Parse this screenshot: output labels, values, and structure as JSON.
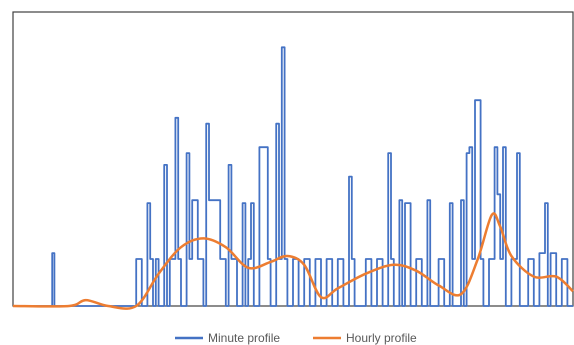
{
  "chart_data": {
    "type": "line",
    "title": "",
    "xlabel": "",
    "ylabel": "",
    "ylim": [
      0,
      1
    ],
    "grid": false,
    "legend": "bottom",
    "series": [
      {
        "name": "Minute profile",
        "color": "#4472c4",
        "style": "step",
        "points": [
          [
            0.0,
            0.0
          ],
          [
            0.07,
            0.0
          ],
          [
            0.07,
            0.18
          ],
          [
            0.074,
            0.18
          ],
          [
            0.074,
            0.0
          ],
          [
            0.22,
            0.0
          ],
          [
            0.22,
            0.16
          ],
          [
            0.23,
            0.16
          ],
          [
            0.23,
            0.0
          ],
          [
            0.24,
            0.0
          ],
          [
            0.24,
            0.35
          ],
          [
            0.245,
            0.35
          ],
          [
            0.245,
            0.16
          ],
          [
            0.25,
            0.16
          ],
          [
            0.25,
            0.0
          ],
          [
            0.255,
            0.0
          ],
          [
            0.255,
            0.16
          ],
          [
            0.26,
            0.16
          ],
          [
            0.26,
            0.0
          ],
          [
            0.27,
            0.0
          ],
          [
            0.27,
            0.48
          ],
          [
            0.275,
            0.48
          ],
          [
            0.275,
            0.0
          ],
          [
            0.28,
            0.0
          ],
          [
            0.28,
            0.16
          ],
          [
            0.29,
            0.16
          ],
          [
            0.29,
            0.64
          ],
          [
            0.295,
            0.64
          ],
          [
            0.295,
            0.16
          ],
          [
            0.3,
            0.16
          ],
          [
            0.3,
            0.0
          ],
          [
            0.31,
            0.0
          ],
          [
            0.31,
            0.52
          ],
          [
            0.315,
            0.52
          ],
          [
            0.315,
            0.16
          ],
          [
            0.32,
            0.16
          ],
          [
            0.32,
            0.36
          ],
          [
            0.33,
            0.36
          ],
          [
            0.33,
            0.16
          ],
          [
            0.34,
            0.16
          ],
          [
            0.34,
            0.0
          ],
          [
            0.345,
            0.0
          ],
          [
            0.345,
            0.62
          ],
          [
            0.35,
            0.62
          ],
          [
            0.35,
            0.36
          ],
          [
            0.37,
            0.36
          ],
          [
            0.37,
            0.16
          ],
          [
            0.38,
            0.16
          ],
          [
            0.38,
            0.0
          ],
          [
            0.385,
            0.0
          ],
          [
            0.385,
            0.48
          ],
          [
            0.39,
            0.48
          ],
          [
            0.39,
            0.16
          ],
          [
            0.4,
            0.16
          ],
          [
            0.4,
            0.0
          ],
          [
            0.41,
            0.0
          ],
          [
            0.41,
            0.35
          ],
          [
            0.415,
            0.35
          ],
          [
            0.415,
            0.0
          ],
          [
            0.42,
            0.0
          ],
          [
            0.42,
            0.16
          ],
          [
            0.425,
            0.16
          ],
          [
            0.425,
            0.35
          ],
          [
            0.43,
            0.35
          ],
          [
            0.43,
            0.0
          ],
          [
            0.44,
            0.0
          ],
          [
            0.44,
            0.54
          ],
          [
            0.455,
            0.54
          ],
          [
            0.455,
            0.16
          ],
          [
            0.46,
            0.16
          ],
          [
            0.46,
            0.0
          ],
          [
            0.47,
            0.0
          ],
          [
            0.47,
            0.62
          ],
          [
            0.475,
            0.62
          ],
          [
            0.475,
            0.16
          ],
          [
            0.48,
            0.16
          ],
          [
            0.48,
            0.88
          ],
          [
            0.485,
            0.88
          ],
          [
            0.485,
            0.16
          ],
          [
            0.49,
            0.16
          ],
          [
            0.49,
            0.0
          ],
          [
            0.5,
            0.0
          ],
          [
            0.5,
            0.16
          ],
          [
            0.51,
            0.16
          ],
          [
            0.51,
            0.0
          ],
          [
            0.52,
            0.0
          ],
          [
            0.52,
            0.16
          ],
          [
            0.53,
            0.16
          ],
          [
            0.53,
            0.0
          ],
          [
            0.54,
            0.0
          ],
          [
            0.54,
            0.16
          ],
          [
            0.55,
            0.16
          ],
          [
            0.55,
            0.0
          ],
          [
            0.56,
            0.0
          ],
          [
            0.56,
            0.16
          ],
          [
            0.57,
            0.16
          ],
          [
            0.57,
            0.0
          ],
          [
            0.58,
            0.0
          ],
          [
            0.58,
            0.16
          ],
          [
            0.59,
            0.16
          ],
          [
            0.59,
            0.0
          ],
          [
            0.6,
            0.0
          ],
          [
            0.6,
            0.44
          ],
          [
            0.605,
            0.44
          ],
          [
            0.605,
            0.16
          ],
          [
            0.61,
            0.16
          ],
          [
            0.61,
            0.0
          ],
          [
            0.63,
            0.0
          ],
          [
            0.63,
            0.16
          ],
          [
            0.64,
            0.16
          ],
          [
            0.64,
            0.0
          ],
          [
            0.65,
            0.0
          ],
          [
            0.65,
            0.16
          ],
          [
            0.66,
            0.16
          ],
          [
            0.66,
            0.0
          ],
          [
            0.67,
            0.0
          ],
          [
            0.67,
            0.52
          ],
          [
            0.675,
            0.52
          ],
          [
            0.675,
            0.16
          ],
          [
            0.68,
            0.16
          ],
          [
            0.68,
            0.0
          ],
          [
            0.69,
            0.0
          ],
          [
            0.69,
            0.36
          ],
          [
            0.695,
            0.36
          ],
          [
            0.695,
            0.0
          ],
          [
            0.7,
            0.0
          ],
          [
            0.7,
            0.35
          ],
          [
            0.71,
            0.35
          ],
          [
            0.71,
            0.0
          ],
          [
            0.72,
            0.0
          ],
          [
            0.72,
            0.16
          ],
          [
            0.73,
            0.16
          ],
          [
            0.73,
            0.0
          ],
          [
            0.74,
            0.0
          ],
          [
            0.74,
            0.36
          ],
          [
            0.745,
            0.36
          ],
          [
            0.745,
            0.0
          ],
          [
            0.76,
            0.0
          ],
          [
            0.76,
            0.16
          ],
          [
            0.77,
            0.16
          ],
          [
            0.77,
            0.0
          ],
          [
            0.78,
            0.0
          ],
          [
            0.78,
            0.35
          ],
          [
            0.785,
            0.35
          ],
          [
            0.785,
            0.0
          ],
          [
            0.8,
            0.0
          ],
          [
            0.8,
            0.36
          ],
          [
            0.805,
            0.36
          ],
          [
            0.805,
            0.0
          ],
          [
            0.81,
            0.0
          ],
          [
            0.81,
            0.52
          ],
          [
            0.815,
            0.52
          ],
          [
            0.815,
            0.54
          ],
          [
            0.82,
            0.54
          ],
          [
            0.82,
            0.16
          ],
          [
            0.825,
            0.16
          ],
          [
            0.825,
            0.7
          ],
          [
            0.835,
            0.7
          ],
          [
            0.835,
            0.16
          ],
          [
            0.84,
            0.16
          ],
          [
            0.84,
            0.0
          ],
          [
            0.85,
            0.0
          ],
          [
            0.85,
            0.16
          ],
          [
            0.86,
            0.16
          ],
          [
            0.86,
            0.54
          ],
          [
            0.865,
            0.54
          ],
          [
            0.865,
            0.38
          ],
          [
            0.87,
            0.38
          ],
          [
            0.87,
            0.16
          ],
          [
            0.875,
            0.16
          ],
          [
            0.875,
            0.54
          ],
          [
            0.88,
            0.54
          ],
          [
            0.88,
            0.0
          ],
          [
            0.89,
            0.0
          ],
          [
            0.89,
            0.16
          ],
          [
            0.9,
            0.16
          ],
          [
            0.9,
            0.52
          ],
          [
            0.905,
            0.52
          ],
          [
            0.905,
            0.0
          ],
          [
            0.92,
            0.0
          ],
          [
            0.92,
            0.16
          ],
          [
            0.93,
            0.16
          ],
          [
            0.93,
            0.0
          ],
          [
            0.94,
            0.0
          ],
          [
            0.94,
            0.18
          ],
          [
            0.95,
            0.18
          ],
          [
            0.95,
            0.35
          ],
          [
            0.955,
            0.35
          ],
          [
            0.955,
            0.0
          ],
          [
            0.96,
            0.0
          ],
          [
            0.96,
            0.18
          ],
          [
            0.97,
            0.18
          ],
          [
            0.97,
            0.0
          ],
          [
            0.98,
            0.0
          ],
          [
            0.98,
            0.16
          ],
          [
            0.99,
            0.16
          ],
          [
            0.99,
            0.0
          ],
          [
            1.0,
            0.0
          ]
        ]
      },
      {
        "name": "Hourly profile",
        "color": "#ed7d31",
        "style": "smooth",
        "points": [
          [
            0.0,
            0.0
          ],
          [
            0.1,
            0.0
          ],
          [
            0.13,
            0.02
          ],
          [
            0.17,
            0.0
          ],
          [
            0.22,
            0.0
          ],
          [
            0.26,
            0.11
          ],
          [
            0.3,
            0.2
          ],
          [
            0.34,
            0.23
          ],
          [
            0.38,
            0.2
          ],
          [
            0.42,
            0.13
          ],
          [
            0.46,
            0.15
          ],
          [
            0.49,
            0.17
          ],
          [
            0.52,
            0.14
          ],
          [
            0.55,
            0.03
          ],
          [
            0.58,
            0.06
          ],
          [
            0.63,
            0.11
          ],
          [
            0.68,
            0.14
          ],
          [
            0.72,
            0.12
          ],
          [
            0.76,
            0.07
          ],
          [
            0.8,
            0.04
          ],
          [
            0.83,
            0.16
          ],
          [
            0.855,
            0.31
          ],
          [
            0.87,
            0.27
          ],
          [
            0.89,
            0.17
          ],
          [
            0.93,
            0.1
          ],
          [
            0.97,
            0.1
          ],
          [
            1.0,
            0.05
          ]
        ]
      }
    ]
  }
}
